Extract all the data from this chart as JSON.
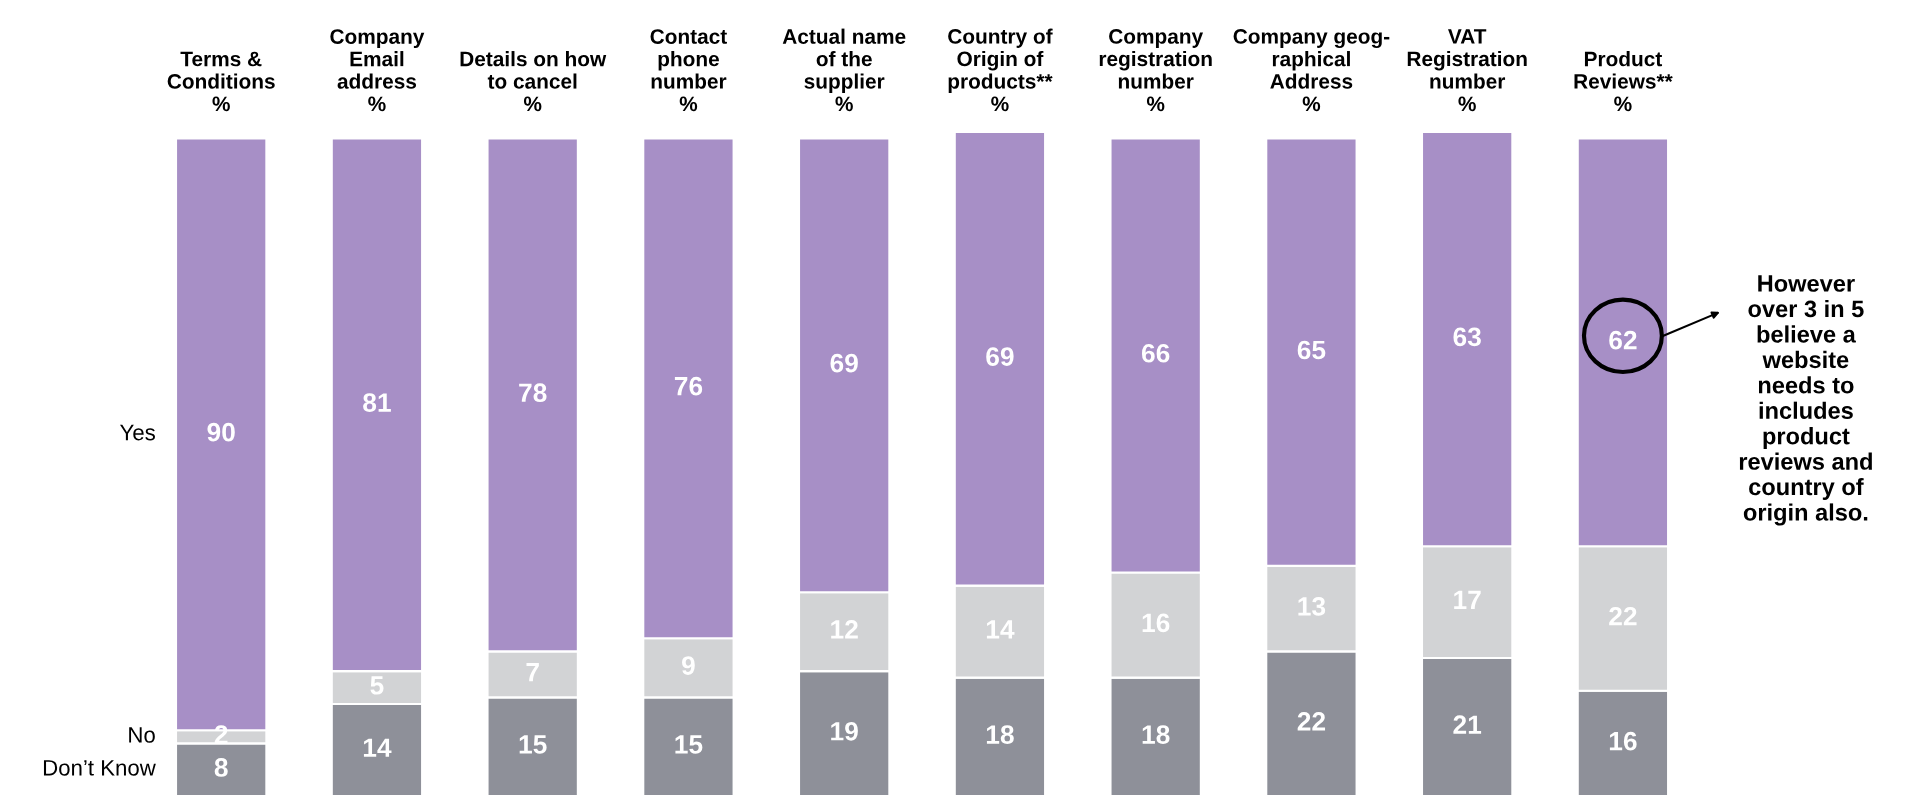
{
  "chart_data": {
    "type": "bar",
    "stacked": true,
    "data_labels": true,
    "legend": false,
    "grid": false,
    "categories": [
      "Terms &\nConditions\n%",
      "Company\nEmail\naddress\n%",
      "Details on how\nto cancel\n%",
      "Contact\nphone\nnumber\n%",
      "Actual name\nof the\nsupplier\n%",
      "Country of\nOrigin of\nproducts**\n%",
      "Company\nregistration\nnumber\n%",
      "Company geog-\nraphical\nAddress\n%",
      "VAT\nRegistration\nnumber\n%",
      "Product\nReviews**\n%"
    ],
    "series": [
      {
        "name": "Don’t Know",
        "color": "#8e9099",
        "values": [
          8,
          14,
          15,
          15,
          19,
          18,
          18,
          22,
          21,
          16
        ]
      },
      {
        "name": "No",
        "color": "#d2d3d5",
        "values": [
          2,
          5,
          7,
          9,
          12,
          14,
          16,
          13,
          17,
          22
        ]
      },
      {
        "name": "Yes",
        "color": "#a78fc6",
        "values": [
          90,
          81,
          78,
          76,
          69,
          69,
          66,
          65,
          63,
          62
        ]
      }
    ],
    "annotations": [
      "However\nover 3 in 5\nbelieve a\nwebsite\nneeds to\nincludes\nproduct\nreviews and\ncountry of\norigin also."
    ]
  }
}
